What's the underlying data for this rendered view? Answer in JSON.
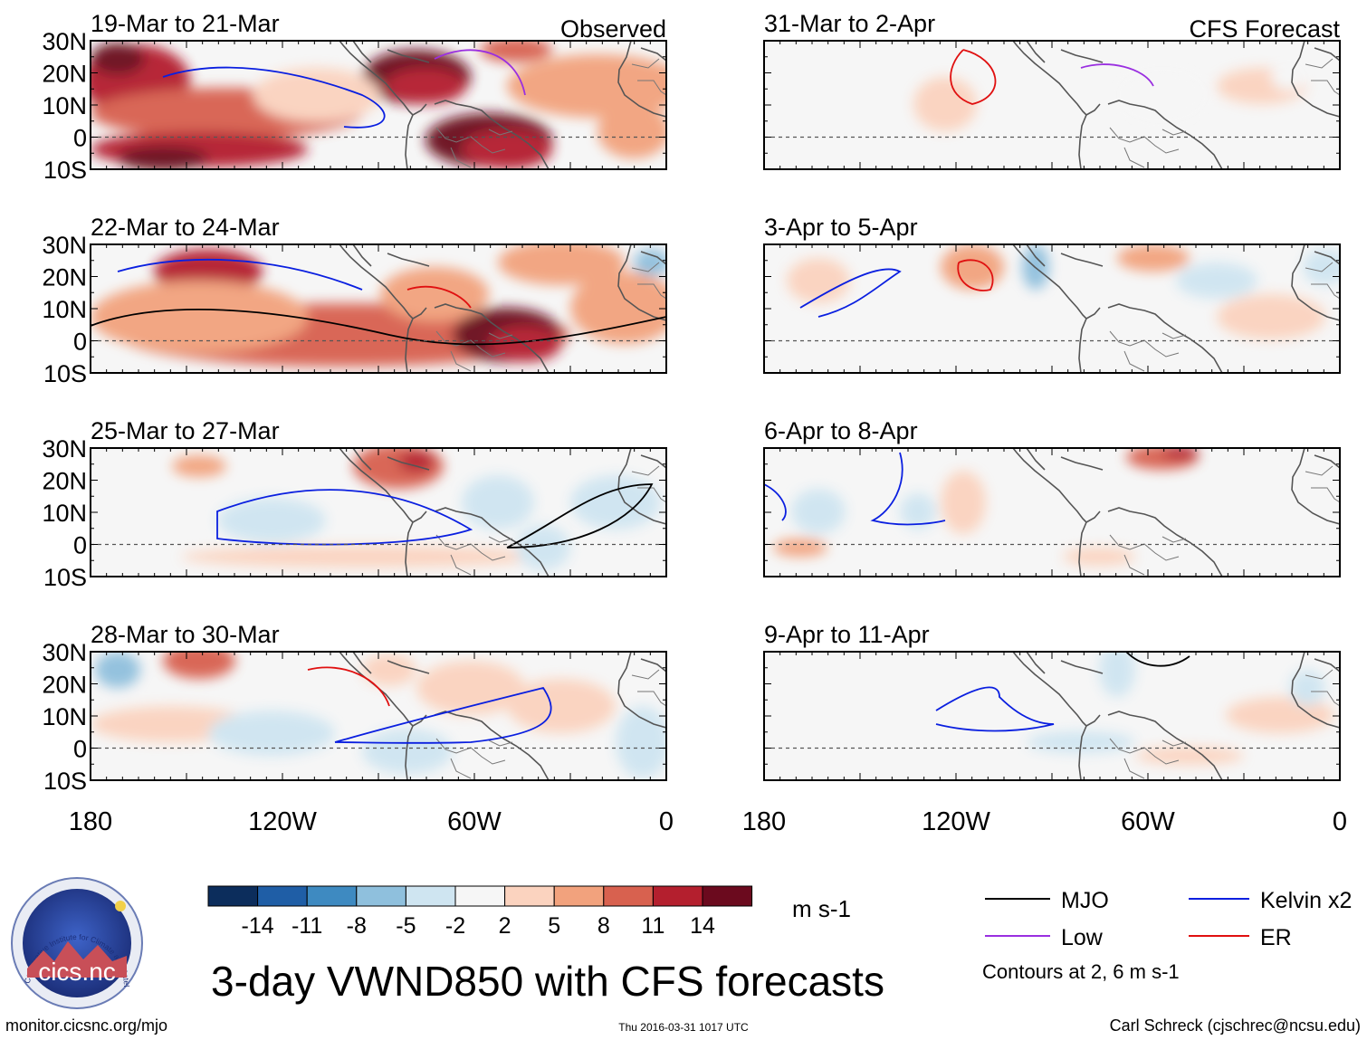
{
  "columns": [
    {
      "header_right": "Observed",
      "panels": [
        {
          "date_range": "19-Mar to 21-Mar"
        },
        {
          "date_range": "22-Mar to 24-Mar"
        },
        {
          "date_range": "25-Mar to 27-Mar"
        },
        {
          "date_range": "28-Mar to 30-Mar"
        }
      ]
    },
    {
      "header_right": "CFS Forecast",
      "panels": [
        {
          "date_range": "31-Mar to 2-Apr"
        },
        {
          "date_range": "3-Apr to 5-Apr"
        },
        {
          "date_range": "6-Apr to 8-Apr"
        },
        {
          "date_range": "9-Apr to 11-Apr"
        }
      ]
    }
  ],
  "axes": {
    "lat_labels": [
      "30N",
      "20N",
      "10N",
      "0",
      "10S"
    ],
    "lat_values": [
      30,
      20,
      10,
      0,
      -10
    ],
    "lon_labels": [
      "180",
      "120W",
      "60W",
      "0"
    ],
    "lon_values": [
      -180,
      -120,
      -60,
      0
    ]
  },
  "colorbar": {
    "labels": [
      "-14",
      "-11",
      "-8",
      "-5",
      "-2",
      "2",
      "5",
      "8",
      "11",
      "14"
    ],
    "colors": [
      "#0c2d5c",
      "#1f5ea6",
      "#3e8ac1",
      "#8fc0dd",
      "#cfe5f1",
      "#f6f6f6",
      "#fbd3bf",
      "#f2a27d",
      "#d8614f",
      "#b41f2e",
      "#6b0a1e"
    ],
    "units": "m s-1"
  },
  "legend": {
    "items": [
      {
        "label": "MJO",
        "color": "#000000"
      },
      {
        "label": "Kelvin x2",
        "color": "#0a1fe0"
      },
      {
        "label": "Low",
        "color": "#9a2fe0"
      },
      {
        "label": "ER",
        "color": "#e01010"
      }
    ],
    "note": "Contours at 2, 6 m s-1"
  },
  "title": "3-day VWND850 with CFS forecasts",
  "logo_text": "cics.nc",
  "logo_ring_text": "Cooperative Institute for Climate and Satellites",
  "footer": {
    "url": "monitor.cicsnc.org/mjo",
    "timestamp": "Thu 2016-03-31 1017 UTC",
    "author": "Carl Schreck (cjschrec@ncsu.edu)"
  }
}
